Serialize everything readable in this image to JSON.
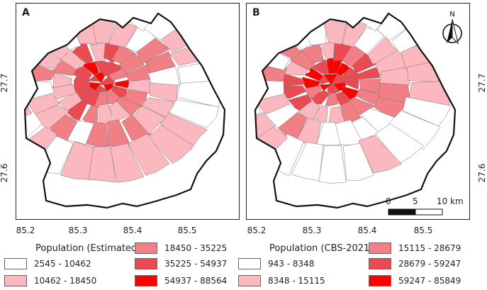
{
  "panels": [
    {
      "letter": "A",
      "legend_title": "Population (Estimated)",
      "classes": [
        {
          "label": "2545 - 10462",
          "color": "#ffffff"
        },
        {
          "label": "10462 - 18450",
          "color": "#fbb8be"
        },
        {
          "label": "18450 - 35225",
          "color": "#f07f86"
        },
        {
          "label": "35225 - 54937",
          "color": "#ea4a52"
        },
        {
          "label": "54937 - 88564",
          "color": "#ff0000"
        }
      ]
    },
    {
      "letter": "B",
      "legend_title": "Population (CBS-2021)",
      "classes": [
        {
          "label": "943 - 8348",
          "color": "#ffffff"
        },
        {
          "label": "8348 - 15115",
          "color": "#fbb8be"
        },
        {
          "label": "15115 - 28679",
          "color": "#f07f86"
        },
        {
          "label": "28679 - 59247",
          "color": "#ea4a52"
        },
        {
          "label": "59247 - 85849",
          "color": "#ff0000"
        }
      ]
    }
  ],
  "axes": {
    "x_ticks": [
      "85.2",
      "85.3",
      "85.4",
      "85.5"
    ],
    "y_ticks": [
      "27.7",
      "27.6"
    ]
  },
  "north_arrow": {
    "label": "N"
  },
  "scale_bar": {
    "labels": [
      "0",
      "5",
      "10 km"
    ]
  }
}
